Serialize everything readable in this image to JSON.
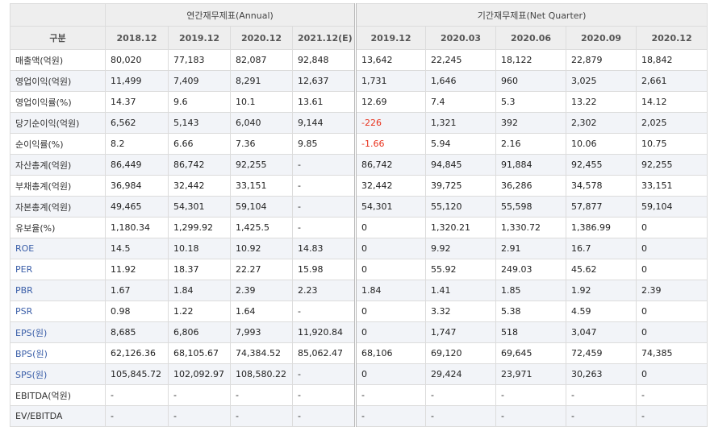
{
  "header": {
    "category_label": "구분",
    "annual_label": "연간재무제표(Annual)",
    "quarter_label": "기간재무제표(Net Quarter)",
    "annual_periods": [
      "2018.12",
      "2019.12",
      "2020.12",
      "2021.12(E)"
    ],
    "quarter_periods": [
      "2019.12",
      "2020.03",
      "2020.06",
      "2020.09",
      "2020.12"
    ]
  },
  "rows": [
    {
      "label": "매출액(억원)",
      "annual": [
        "80,020",
        "77,183",
        "82,087",
        "92,848"
      ],
      "quarter": [
        "13,642",
        "22,245",
        "18,122",
        "22,879",
        "18,842"
      ]
    },
    {
      "label": "영업이익(억원)",
      "annual": [
        "11,499",
        "7,409",
        "8,291",
        "12,637"
      ],
      "quarter": [
        "1,731",
        "1,646",
        "960",
        "3,025",
        "2,661"
      ]
    },
    {
      "label": "영업이익률(%)",
      "annual": [
        "14.37",
        "9.6",
        "10.1",
        "13.61"
      ],
      "quarter": [
        "12.69",
        "7.4",
        "5.3",
        "13.22",
        "14.12"
      ]
    },
    {
      "label": "당기순이익(억원)",
      "annual": [
        "6,562",
        "5,143",
        "6,040",
        "9,144"
      ],
      "quarter": [
        "-226",
        "1,321",
        "392",
        "2,302",
        "2,025"
      ]
    },
    {
      "label": "순이익률(%)",
      "annual": [
        "8.2",
        "6.66",
        "7.36",
        "9.85"
      ],
      "quarter": [
        "-1.66",
        "5.94",
        "2.16",
        "10.06",
        "10.75"
      ]
    },
    {
      "label": "자산총계(억원)",
      "annual": [
        "86,449",
        "86,742",
        "92,255",
        "-"
      ],
      "quarter": [
        "86,742",
        "94,845",
        "91,884",
        "92,455",
        "92,255"
      ]
    },
    {
      "label": "부채총계(억원)",
      "annual": [
        "36,984",
        "32,442",
        "33,151",
        "-"
      ],
      "quarter": [
        "32,442",
        "39,725",
        "36,286",
        "34,578",
        "33,151"
      ]
    },
    {
      "label": "자본총계(억원)",
      "annual": [
        "49,465",
        "54,301",
        "59,104",
        "-"
      ],
      "quarter": [
        "54,301",
        "55,120",
        "55,598",
        "57,877",
        "59,104"
      ]
    },
    {
      "label": "유보율(%)",
      "annual": [
        "1,180.34",
        "1,299.92",
        "1,425.5",
        "-"
      ],
      "quarter": [
        "0",
        "1,320.21",
        "1,330.72",
        "1,386.99",
        "0"
      ]
    },
    {
      "label": "ROE",
      "annual": [
        "14.5",
        "10.18",
        "10.92",
        "14.83"
      ],
      "quarter": [
        "0",
        "9.92",
        "2.91",
        "16.7",
        "0"
      ]
    },
    {
      "label": "PER",
      "annual": [
        "11.92",
        "18.37",
        "22.27",
        "15.98"
      ],
      "quarter": [
        "0",
        "55.92",
        "249.03",
        "45.62",
        "0"
      ]
    },
    {
      "label": "PBR",
      "annual": [
        "1.67",
        "1.84",
        "2.39",
        "2.23"
      ],
      "quarter": [
        "1.84",
        "1.41",
        "1.85",
        "1.92",
        "2.39"
      ]
    },
    {
      "label": "PSR",
      "annual": [
        "0.98",
        "1.22",
        "1.64",
        "-"
      ],
      "quarter": [
        "0",
        "3.32",
        "5.38",
        "4.59",
        "0"
      ]
    },
    {
      "label": "EPS(원)",
      "annual": [
        "8,685",
        "6,806",
        "7,993",
        "11,920.84"
      ],
      "quarter": [
        "0",
        "1,747",
        "518",
        "3,047",
        "0"
      ]
    },
    {
      "label": "BPS(원)",
      "annual": [
        "62,126.36",
        "68,105.67",
        "74,384.52",
        "85,062.47"
      ],
      "quarter": [
        "68,106",
        "69,120",
        "69,645",
        "72,459",
        "74,385"
      ]
    },
    {
      "label": "SPS(원)",
      "annual": [
        "105,845.72",
        "102,092.97",
        "108,580.22",
        "-"
      ],
      "quarter": [
        "0",
        "29,424",
        "23,971",
        "30,263",
        "0"
      ]
    },
    {
      "label": "EBITDA(억원)",
      "annual": [
        "-",
        "-",
        "-",
        "-"
      ],
      "quarter": [
        "-",
        "-",
        "-",
        "-",
        "-"
      ]
    },
    {
      "label": "EV/EBITDA",
      "annual": [
        "-",
        "-",
        "-",
        "-"
      ],
      "quarter": [
        "-",
        "-",
        "-",
        "-",
        "-"
      ]
    }
  ],
  "colors": {
    "header_bg": "#eeeeee",
    "row_shade": "#f2f4f8",
    "label_link": "#3a5ea8",
    "negative": "#e8311c",
    "border": "#dcdcdc"
  }
}
